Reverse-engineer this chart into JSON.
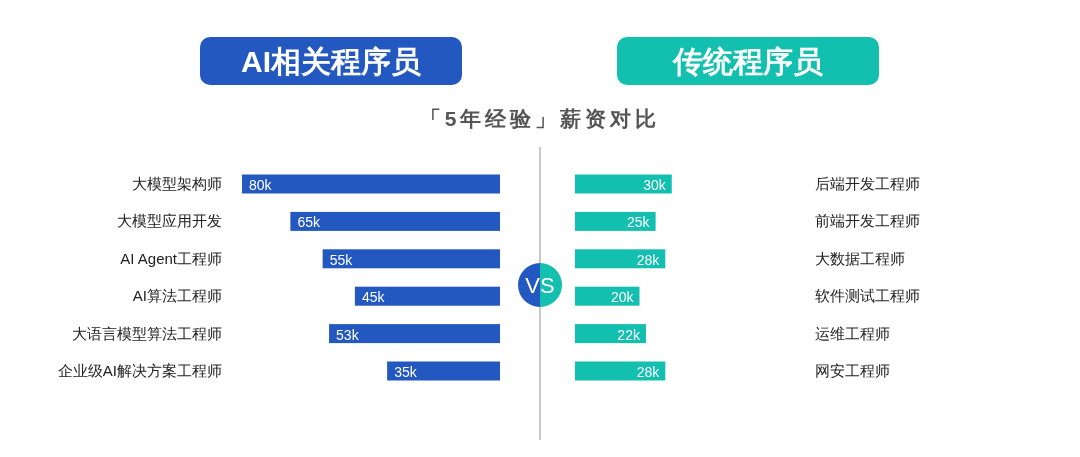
{
  "chart_data": [
    {
      "type": "bar",
      "orientation": "horizontal",
      "title": "AI相关程序员",
      "subtitle": "「5年经验」薪资对比",
      "annotations": [
        "VS"
      ],
      "categories": [
        "大模型架构师",
        "大模型应用开发",
        "AI Agent工程师",
        "AI算法工程师",
        "大语言模型算法工程师",
        "企业级AI解决方案工程师"
      ],
      "values": [
        80,
        65,
        55,
        45,
        53,
        35
      ],
      "value_labels": [
        "80k",
        "65k",
        "55k",
        "45k",
        "53k",
        "35k"
      ],
      "color": "#2358c0"
    },
    {
      "type": "bar",
      "orientation": "horizontal",
      "title": "传统程序员",
      "categories": [
        "后端开发工程师",
        "前端开发工程师",
        "大数据工程师",
        "软件测试工程师",
        "运维工程师",
        "网安工程师"
      ],
      "values": [
        30,
        25,
        28,
        20,
        22,
        28
      ],
      "value_labels": [
        "30k",
        "25k",
        "28k",
        "20k",
        "22k",
        "28k"
      ],
      "color": "#13bfae"
    }
  ]
}
